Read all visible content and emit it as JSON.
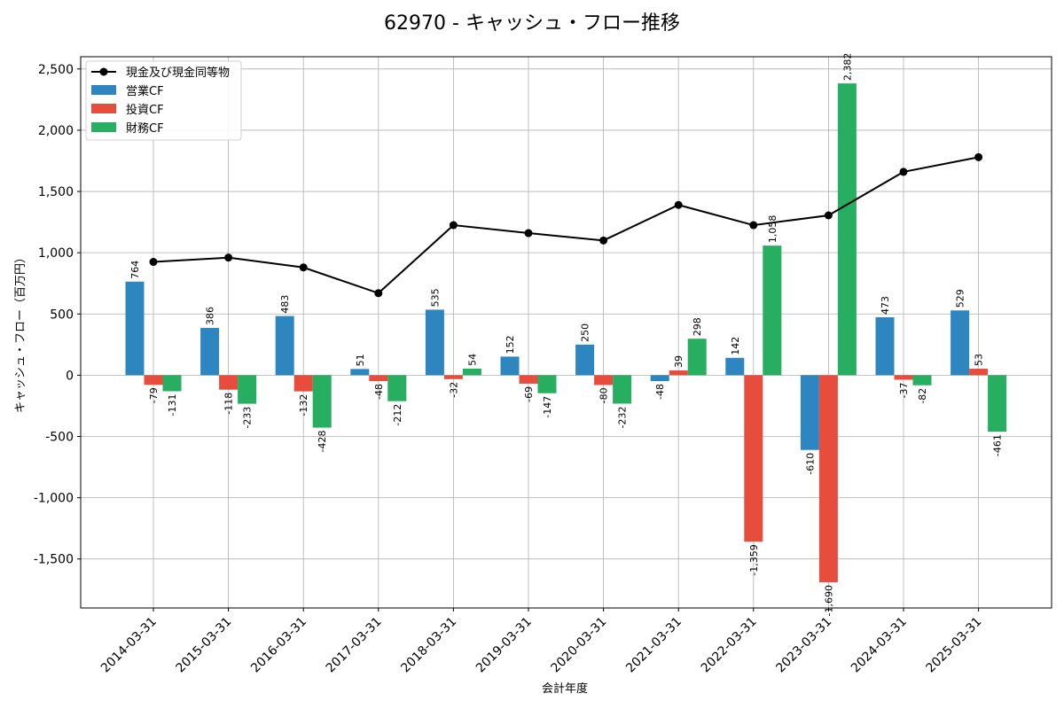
{
  "chart_data": {
    "type": "bar",
    "title": "62970 - キャッシュ・フロー推移",
    "xlabel": "会計年度",
    "ylabel": "キャッシュ・フロー（百万円）",
    "ylim": [
      -1900,
      2600
    ],
    "yticks": [
      -1500,
      -1000,
      -500,
      0,
      500,
      1000,
      1500,
      2000,
      2500
    ],
    "ytick_labels": [
      "-1,500",
      "-1,000",
      "-500",
      "0",
      "500",
      "1,000",
      "1,500",
      "2,000",
      "2,500"
    ],
    "grid": true,
    "legend_position": "top-left",
    "categories": [
      "2014-03-31",
      "2015-03-31",
      "2016-03-31",
      "2017-03-31",
      "2018-03-31",
      "2019-03-31",
      "2020-03-31",
      "2021-03-31",
      "2022-03-31",
      "2023-03-31",
      "2024-03-31",
      "2025-03-31"
    ],
    "series": [
      {
        "name": "営業CF",
        "kind": "bar",
        "color": "#2e86c1",
        "values": [
          764,
          386,
          483,
          51,
          535,
          152,
          250,
          -48,
          142,
          -610,
          473,
          529
        ],
        "labels": [
          "764",
          "386",
          "483",
          "51",
          "535",
          "152",
          "250",
          "-48",
          "142",
          "-610",
          "473",
          "529"
        ]
      },
      {
        "name": "投資CF",
        "kind": "bar",
        "color": "#e74c3c",
        "values": [
          -79,
          -118,
          -132,
          -48,
          -32,
          -69,
          -80,
          39,
          -1359,
          -1690,
          -37,
          53
        ],
        "labels": [
          "-79",
          "-118",
          "-132",
          "-48",
          "-32",
          "-69",
          "-80",
          "39",
          "-1,359",
          "-1,690",
          "-37",
          "53"
        ]
      },
      {
        "name": "財務CF",
        "kind": "bar",
        "color": "#27ae60",
        "values": [
          -131,
          -233,
          -428,
          -212,
          54,
          -147,
          -232,
          298,
          1058,
          2382,
          -82,
          -461
        ],
        "labels": [
          "-131",
          "-233",
          "-428",
          "-212",
          "54",
          "-147",
          "-232",
          "298",
          "1,058",
          "2,382",
          "-82",
          "-461"
        ]
      },
      {
        "name": "現金及び現金同等物",
        "kind": "line",
        "color": "#000000",
        "values": [
          925,
          960,
          880,
          670,
          1225,
          1160,
          1100,
          1390,
          1225,
          1305,
          1660,
          1780
        ]
      }
    ]
  }
}
